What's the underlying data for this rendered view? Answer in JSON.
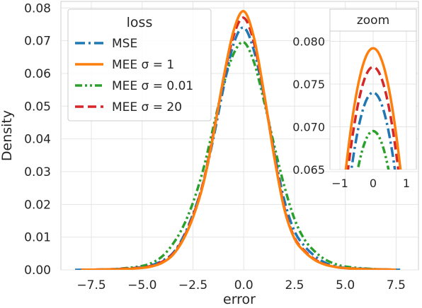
{
  "chart_data": [
    {
      "type": "line",
      "subtype": "density",
      "xlabel": "error",
      "ylabel": "Density",
      "xlim": [
        -9.0,
        8.6
      ],
      "ylim": [
        0,
        0.082
      ],
      "xticks": [
        -7.5,
        -5.0,
        -2.5,
        0.0,
        2.5,
        5.0,
        7.5
      ],
      "xtick_labels": [
        "−7.5",
        "−5.0",
        "−2.5",
        "0.0",
        "2.5",
        "5.0",
        "7.5"
      ],
      "yticks": [
        0.0,
        0.01,
        0.02,
        0.03,
        0.04,
        0.05,
        0.06,
        0.07,
        0.08
      ],
      "ytick_labels": [
        "0.00",
        "0.01",
        "0.02",
        "0.03",
        "0.04",
        "0.05",
        "0.06",
        "0.07",
        "0.08"
      ],
      "grid": true,
      "legend": {
        "title": "loss",
        "placement": "top-left"
      },
      "series": [
        {
          "name": "MSE",
          "color": "#1f77b4",
          "style": "dashdot",
          "x": [
            -8.3,
            -7.0,
            -6.0,
            -5.0,
            -4.5,
            -4.0,
            -3.5,
            -3.0,
            -2.5,
            -2.0,
            -1.5,
            -1.0,
            -0.5,
            0.0,
            0.5,
            1.0,
            1.5,
            2.0,
            2.5,
            3.0,
            3.5,
            4.0,
            4.5,
            5.0,
            6.0,
            7.0,
            7.7
          ],
          "y": [
            0.0,
            0.0001,
            0.0003,
            0.0008,
            0.0015,
            0.0028,
            0.005,
            0.0098,
            0.017,
            0.0265,
            0.04,
            0.0555,
            0.069,
            0.074,
            0.067,
            0.053,
            0.036,
            0.0212,
            0.0118,
            0.0072,
            0.0042,
            0.0022,
            0.0011,
            0.0006,
            0.0003,
            0.0001,
            0.0
          ]
        },
        {
          "name": "MEE σ = 1",
          "color": "#ff7f0e",
          "style": "solid",
          "x": [
            -8.0,
            -7.0,
            -6.0,
            -5.0,
            -4.5,
            -4.0,
            -3.5,
            -3.0,
            -2.5,
            -2.0,
            -1.5,
            -1.0,
            -0.5,
            0.0,
            0.5,
            1.0,
            1.5,
            2.0,
            2.5,
            3.0,
            3.5,
            4.0,
            4.5,
            5.0,
            6.0,
            7.0,
            7.5
          ],
          "y": [
            0.0,
            0.0001,
            0.0002,
            0.0006,
            0.0011,
            0.0022,
            0.0045,
            0.009,
            0.016,
            0.026,
            0.041,
            0.0585,
            0.073,
            0.079,
            0.071,
            0.054,
            0.0345,
            0.0185,
            0.0095,
            0.0055,
            0.003,
            0.0016,
            0.0009,
            0.0005,
            0.0002,
            0.0001,
            0.0
          ]
        },
        {
          "name": "MEE σ = 0.01",
          "color": "#2ca02c",
          "style": "dashdotdot",
          "x": [
            -8.0,
            -7.0,
            -6.0,
            -5.0,
            -4.5,
            -4.0,
            -3.5,
            -3.0,
            -2.5,
            -2.0,
            -1.5,
            -1.0,
            -0.5,
            0.0,
            0.5,
            1.0,
            1.5,
            2.0,
            2.5,
            3.0,
            3.5,
            4.0,
            4.5,
            5.0,
            6.0,
            7.0,
            7.5
          ],
          "y": [
            0.0,
            0.0001,
            0.0004,
            0.0012,
            0.0022,
            0.0042,
            0.0078,
            0.013,
            0.0205,
            0.0305,
            0.0435,
            0.0565,
            0.066,
            0.0695,
            0.0635,
            0.0515,
            0.038,
            0.0255,
            0.0155,
            0.0092,
            0.0056,
            0.0032,
            0.0018,
            0.001,
            0.0004,
            0.0001,
            0.0
          ]
        },
        {
          "name": "MEE σ = 20",
          "color": "#d62728",
          "style": "dashed",
          "x": [
            -8.0,
            -7.0,
            -6.0,
            -5.0,
            -4.5,
            -4.0,
            -3.5,
            -3.0,
            -2.5,
            -2.0,
            -1.5,
            -1.0,
            -0.5,
            0.0,
            0.5,
            1.0,
            1.5,
            2.0,
            2.5,
            3.0,
            3.5,
            4.0,
            4.5,
            5.0,
            6.0,
            7.0,
            7.5
          ],
          "y": [
            0.0,
            0.0001,
            0.0003,
            0.0007,
            0.0013,
            0.0025,
            0.0048,
            0.0093,
            0.0165,
            0.0265,
            0.0415,
            0.058,
            0.0715,
            0.077,
            0.0695,
            0.0535,
            0.035,
            0.019,
            0.0098,
            0.0058,
            0.0032,
            0.0017,
            0.0009,
            0.0005,
            0.0002,
            0.0001,
            0.0
          ]
        }
      ]
    },
    {
      "type": "line",
      "subtype": "density-zoom",
      "title": "zoom",
      "xlim": [
        -1.3,
        1.3
      ],
      "ylim": [
        0.065,
        0.0812
      ],
      "xticks": [
        -1,
        0,
        1
      ],
      "xtick_labels": [
        "−1",
        "0",
        "1"
      ],
      "yticks": [
        0.065,
        0.07,
        0.075,
        0.08
      ],
      "ytick_labels": [
        "0.065",
        "0.070",
        "0.075",
        "0.080"
      ],
      "grid": true,
      "series_peaks": [
        {
          "name": "MSE",
          "peak": 0.074,
          "halfwidth": 0.75
        },
        {
          "name": "MEE σ = 1",
          "peak": 0.0792,
          "halfwidth": 0.8
        },
        {
          "name": "MEE σ = 0.01",
          "peak": 0.0695,
          "halfwidth": 0.72
        },
        {
          "name": "MEE σ = 20",
          "peak": 0.077,
          "halfwidth": 0.78
        }
      ]
    }
  ],
  "styles": {
    "dashdot": "14 5 3 5",
    "dashdotdot": "10 4 3 4 3 4",
    "dashed": "12 6",
    "solid": ""
  }
}
